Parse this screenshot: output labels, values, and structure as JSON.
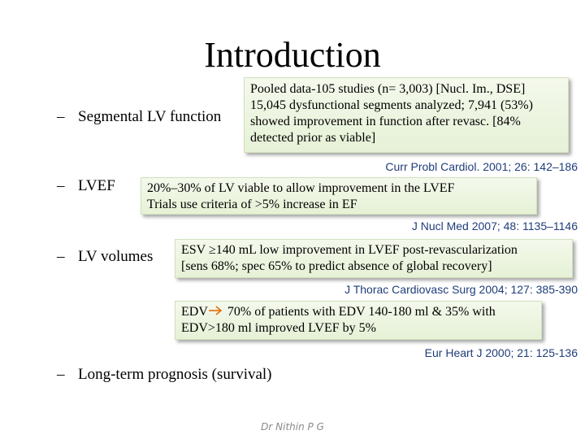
{
  "slide": {
    "title": "Introduction",
    "footer": "Dr Nithin P G"
  },
  "bullets": [
    {
      "dash": "–",
      "label": "Segmental LV function",
      "box_lines": [
        "Pooled data-105 studies (n= 3,003) [Nucl. Im., DSE]",
        "15,045 dysfunctional segments analyzed; 7,941 (53%)",
        "showed improvement in function after revasc. [84%",
        "detected prior as viable]"
      ],
      "citation": "Curr Probl Cardiol. 2001; 26: 142–186"
    },
    {
      "dash": "–",
      "label": "LVEF",
      "box_lines": [
        "20%–30% of LV viable to allow improvement in the LVEF",
        "Trials use criteria of >5% increase in EF"
      ],
      "citation": "J Nucl Med 2007; 48: 1135–1146"
    },
    {
      "dash": "–",
      "label": "LV volumes",
      "box_lines": [
        "ESV ≥140 mL low improvement in LVEF post-revascularization",
        "[sens 68%; spec 65% to  predict absence of global recovery]"
      ],
      "citation": "J Thorac Cardiovasc Surg 2004; 127: 385-390",
      "box2": {
        "line1_start": "EDV",
        "line1_rest": " 70% of patients with EDV 140-180 ml & 35% with",
        "line2": "EDV>180 ml improved LVEF by 5%"
      },
      "citation2": "Eur Heart J 2000; 21: 125-136"
    },
    {
      "dash": "–",
      "label": "Long-term prognosis (survival)"
    }
  ],
  "icons": {
    "arrow": "right-arrow-icon"
  },
  "colors": {
    "box_bg": "#e6f1d6",
    "citation": "#1f3d7a",
    "arrow": "#e46c0a"
  }
}
